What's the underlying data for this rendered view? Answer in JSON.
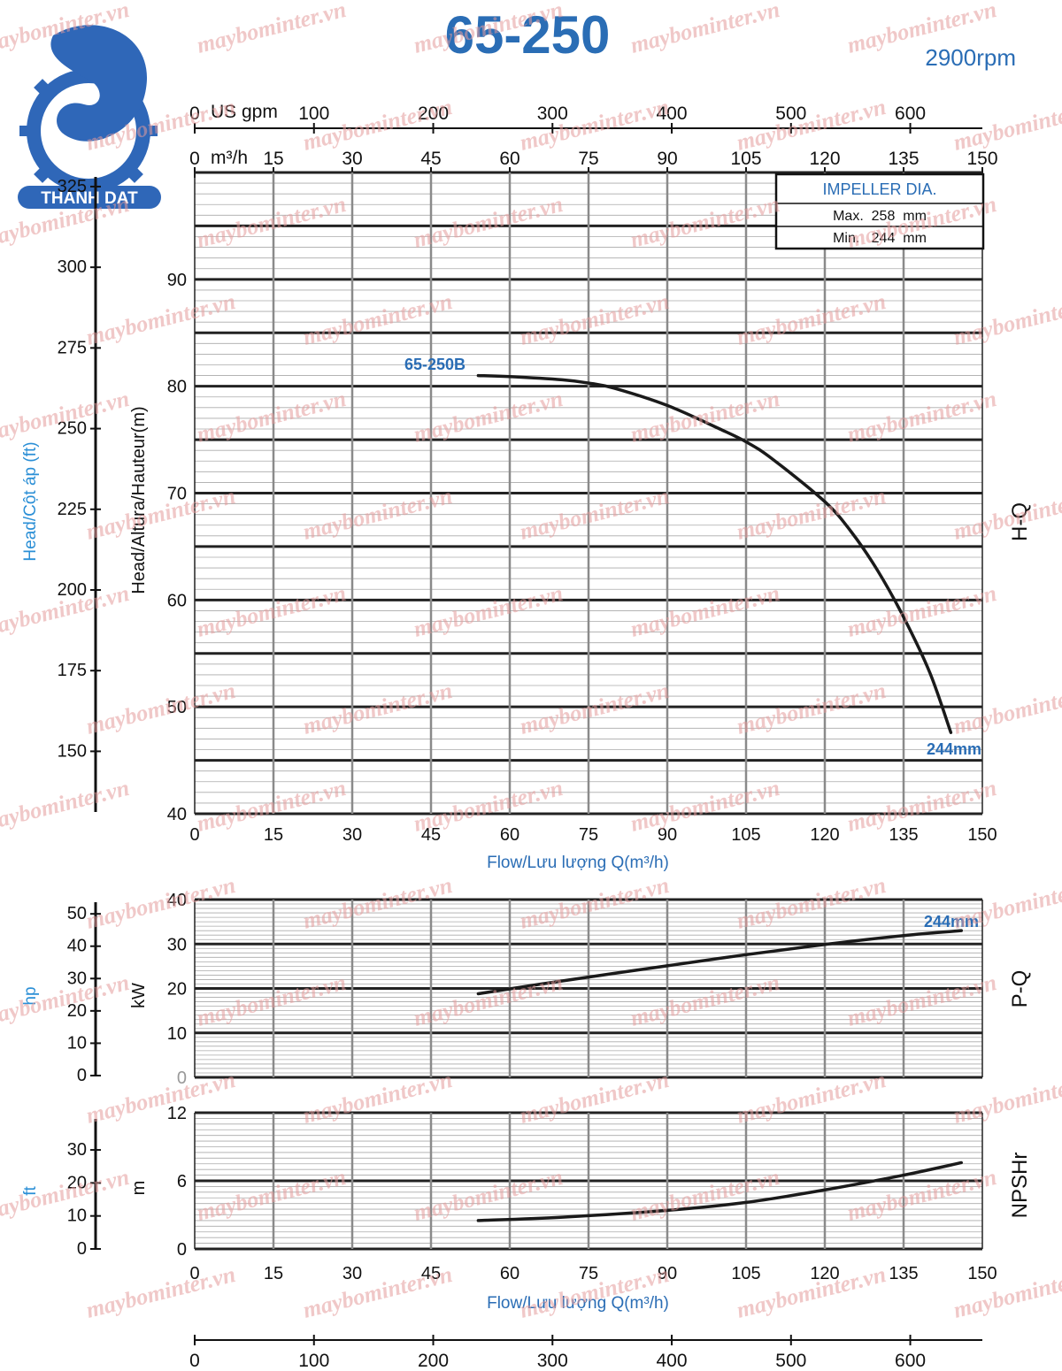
{
  "header": {
    "model": "65-250",
    "rpm": "2900rpm",
    "brand": "THANH DAT",
    "watermark": "maybominter.vn"
  },
  "colors": {
    "blue": "#2a6db5",
    "light_blue": "#2b8fd6",
    "curve": "#1a1a1a",
    "grid_major": "#222222",
    "grid_minor": "#aaaaaa",
    "watermark": "#e39a9a"
  },
  "impeller": {
    "title": "IMPELLER DIA.",
    "max": "Max.  258  mm",
    "min": "Min.   244  mm"
  },
  "top_scales": {
    "gpm_label": "US gpm",
    "gpm_ticks": [
      "0",
      "100",
      "200",
      "300",
      "400",
      "500",
      "600"
    ],
    "m3h_label": "m³/h",
    "m3h_ticks": [
      "0",
      "15",
      "30",
      "45",
      "60",
      "75",
      "90",
      "105",
      "120",
      "135",
      "150"
    ]
  },
  "bottom_scale": {
    "gpm_ticks": [
      "0",
      "100",
      "200",
      "300",
      "400",
      "500",
      "600"
    ]
  },
  "chart_data": [
    {
      "type": "line",
      "id": "H-Q",
      "side_label": "H-Q",
      "ylabel": "Head/Altura/Hauteur(m)",
      "ylabel2": "Head/Cột áp (ft)",
      "xlabel": "Flow/Lưu lượng Q(m³/h)",
      "xlim": [
        0,
        150
      ],
      "ylim": [
        40,
        100
      ],
      "x_ticks": [
        "0",
        "15",
        "30",
        "45",
        "60",
        "75",
        "90",
        "105",
        "120",
        "135",
        "150"
      ],
      "y_ticks": [
        "40",
        "50",
        "60",
        "70",
        "80",
        "90"
      ],
      "y2_ticks": [
        "150",
        "175",
        "200",
        "225",
        "250",
        "275",
        "300",
        "325"
      ],
      "annotations": [
        "65-250B",
        "244mm"
      ],
      "series": [
        {
          "name": "244mm",
          "x": [
            54,
            60,
            70,
            75,
            80,
            90,
            100,
            105,
            110,
            120,
            125,
            130,
            135,
            140,
            144
          ],
          "y": [
            81,
            80.9,
            80.6,
            80.3,
            79.8,
            78.2,
            76,
            74.8,
            73.2,
            69.2,
            66.4,
            62.8,
            58.4,
            53.2,
            47.6
          ]
        }
      ]
    },
    {
      "type": "line",
      "id": "P-Q",
      "side_label": "P-Q",
      "ylabel": "kW",
      "ylabel2": "hp",
      "xlim": [
        0,
        150
      ],
      "ylim": [
        0,
        40
      ],
      "y_ticks": [
        "0",
        "10",
        "20",
        "30",
        "40"
      ],
      "y2_ticks": [
        "0",
        "10",
        "20",
        "30",
        "40",
        "50"
      ],
      "annotations": [
        "244mm"
      ],
      "series": [
        {
          "name": "244mm",
          "x": [
            54,
            70,
            90,
            105,
            120,
            135,
            146
          ],
          "y": [
            18.8,
            21.7,
            25.1,
            27.6,
            29.9,
            31.9,
            33
          ]
        }
      ]
    },
    {
      "type": "line",
      "id": "NPSHr",
      "side_label": "NPSHr",
      "ylabel": "m",
      "ylabel2": "ft",
      "xlabel": "Flow/Lưu lượng Q(m³/h)",
      "xlim": [
        0,
        150
      ],
      "ylim": [
        0,
        12
      ],
      "x_ticks": [
        "0",
        "15",
        "30",
        "45",
        "60",
        "75",
        "90",
        "105",
        "120",
        "135",
        "150"
      ],
      "y_ticks": [
        "0",
        "6",
        "12"
      ],
      "y2_ticks": [
        "0",
        "10",
        "20",
        "30"
      ],
      "series": [
        {
          "name": "",
          "x": [
            54,
            70,
            90,
            105,
            120,
            135,
            146
          ],
          "y": [
            2.5,
            2.8,
            3.4,
            4.1,
            5.2,
            6.5,
            7.6
          ]
        }
      ]
    }
  ]
}
